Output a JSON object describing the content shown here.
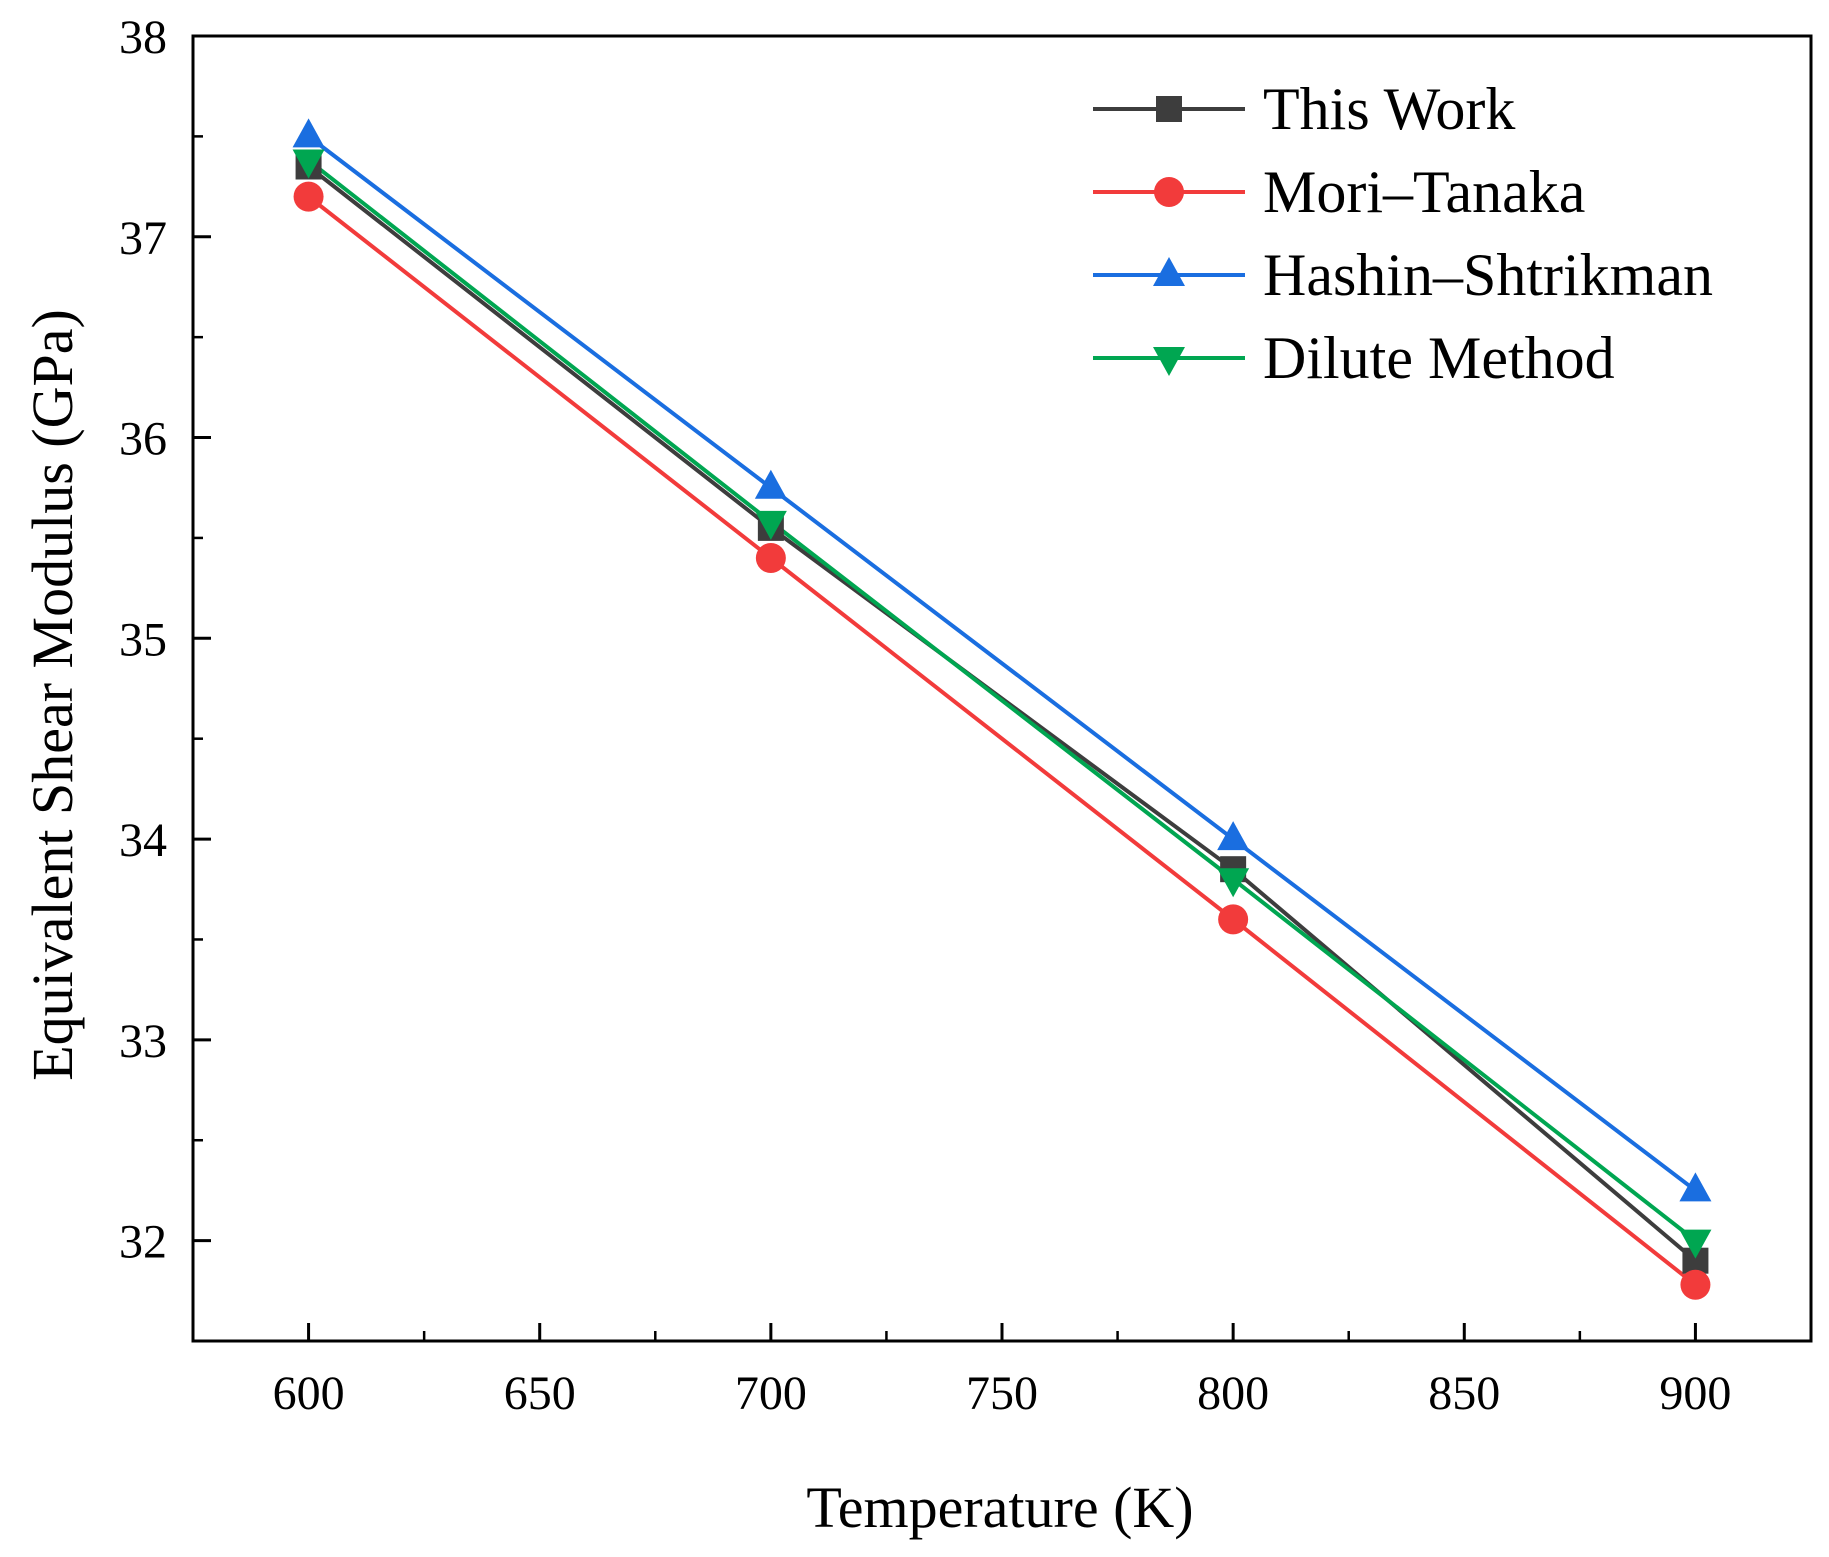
{
  "chart_data": {
    "type": "line",
    "title": "",
    "xlabel": "Temperature (K)",
    "ylabel": "Equivalent Shear Modulus (GPa)",
    "xlim": [
      575,
      925
    ],
    "ylim": [
      31.5,
      38
    ],
    "x_major_ticks": [
      600,
      650,
      700,
      750,
      800,
      850,
      900
    ],
    "x_tick_labels": [
      "600",
      "650",
      "700",
      "750",
      "800",
      "850",
      "900"
    ],
    "y_major_ticks": [
      32,
      33,
      34,
      35,
      36,
      37,
      38
    ],
    "y_tick_labels": [
      "32",
      "33",
      "34",
      "35",
      "36",
      "37",
      "38"
    ],
    "grid": false,
    "legend_position": "top-right",
    "x": [
      600,
      700,
      800,
      900
    ],
    "series": [
      {
        "name": "This Work",
        "color": "#3d3d3d",
        "marker": "square",
        "values": [
          37.35,
          35.55,
          33.85,
          31.9
        ]
      },
      {
        "name": "Mori–Tanaka",
        "color": "#f23b3b",
        "marker": "circle",
        "values": [
          37.2,
          35.4,
          33.6,
          31.78
        ]
      },
      {
        "name": "Hashin–Shtrikman",
        "color": "#1a6ee0",
        "marker": "triangle-up",
        "values": [
          37.5,
          35.75,
          34.0,
          32.25
        ]
      },
      {
        "name": "Dilute Method",
        "color": "#00a651",
        "marker": "triangle-down",
        "values": [
          37.38,
          35.58,
          33.8,
          32.0
        ]
      }
    ]
  }
}
